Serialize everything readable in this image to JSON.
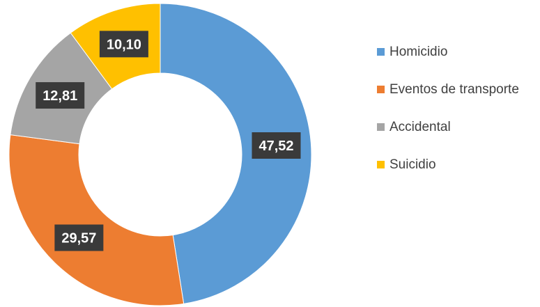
{
  "chart_data": {
    "type": "pie",
    "variant": "donut",
    "categories": [
      "Homicidio",
      "Eventos de transporte",
      "Accidental",
      "Suicidio"
    ],
    "values": [
      47.52,
      29.57,
      12.81,
      10.1
    ],
    "value_labels": [
      "47,52",
      "29,57",
      "12,81",
      "10,10"
    ],
    "colors": [
      "#5B9BD5",
      "#ED7D31",
      "#A5A5A5",
      "#FFC000"
    ],
    "legend_position": "right",
    "title": ""
  }
}
